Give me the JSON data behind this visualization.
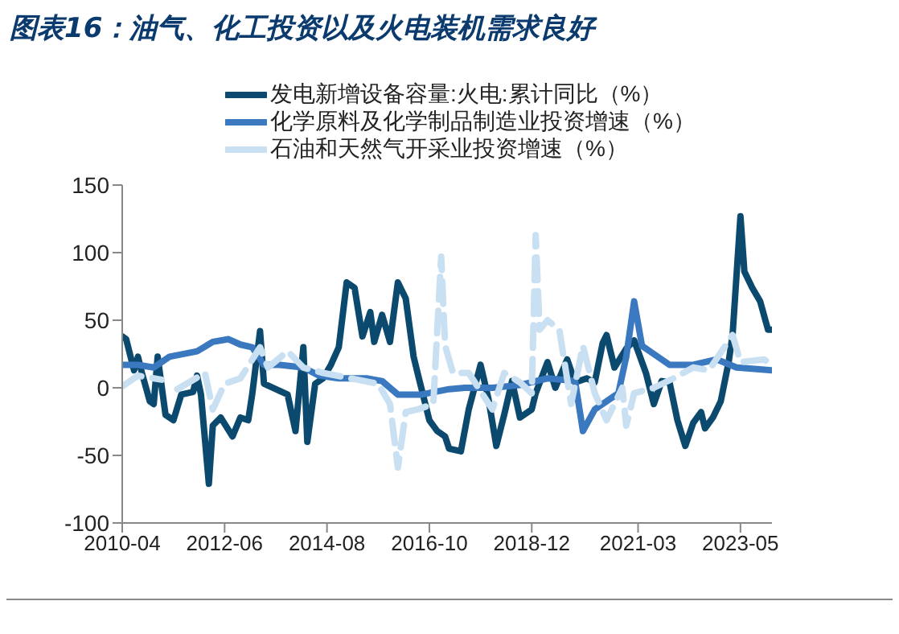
{
  "chart_data": {
    "type": "line",
    "title": "图表16：油气、化工投资以及火电装机需求良好",
    "xlim": [
      "2010-04",
      "2024-01"
    ],
    "xticks": [
      "2010-04",
      "2012-06",
      "2014-08",
      "2016-10",
      "2018-12",
      "2021-03",
      "2023-05"
    ],
    "ylim": [
      -100,
      150
    ],
    "yticks": [
      -100,
      -50,
      0,
      50,
      100,
      150
    ],
    "grid": false,
    "legend": "top",
    "marker": "none",
    "series": [
      {
        "name": "发电新增设备容量:火电:累计同比（%）",
        "color": "#0b4a6e",
        "line_style": "solid",
        "x": [
          "2010-04",
          "2010-05",
          "2010-07",
          "2010-08",
          "2010-09",
          "2010-11",
          "2010-12",
          "2011-01",
          "2011-03",
          "2011-05",
          "2011-07",
          "2011-10",
          "2011-11",
          "2011-12",
          "2012-02",
          "2012-03",
          "2012-05",
          "2012-08",
          "2012-10",
          "2012-12",
          "2013-01",
          "2013-03",
          "2013-04",
          "2013-07",
          "2013-10",
          "2013-12",
          "2014-02",
          "2014-03",
          "2014-05",
          "2014-07",
          "2014-09",
          "2014-11",
          "2015-01",
          "2015-03",
          "2015-05",
          "2015-07",
          "2015-08",
          "2015-10",
          "2015-12",
          "2016-02",
          "2016-04",
          "2016-06",
          "2016-07",
          "2016-10",
          "2016-12",
          "2017-02",
          "2017-03",
          "2017-06",
          "2017-08",
          "2017-11",
          "2018-01",
          "2018-03",
          "2018-05",
          "2018-07",
          "2018-09",
          "2018-12",
          "2019-01",
          "2019-04",
          "2019-06",
          "2019-09",
          "2019-11",
          "2020-02",
          "2020-04",
          "2020-06",
          "2020-07",
          "2020-09",
          "2020-12",
          "2021-02",
          "2021-05",
          "2021-07",
          "2021-09",
          "2021-11",
          "2022-01",
          "2022-03",
          "2022-05",
          "2022-07",
          "2022-08",
          "2022-10",
          "2022-12",
          "2023-02",
          "2023-03",
          "2023-05",
          "2023-06",
          "2023-08",
          "2023-10",
          "2023-12",
          "2024-01"
        ],
        "values": [
          38,
          36,
          13,
          23,
          11,
          -10,
          -12,
          23,
          -20,
          -24,
          -5,
          -3,
          9,
          -5,
          -71,
          -28,
          -22,
          -36,
          -22,
          -24,
          -5,
          42,
          3,
          -1,
          -5,
          -32,
          30,
          -40,
          3,
          7,
          17,
          30,
          78,
          74,
          38,
          56,
          34,
          54,
          34,
          78,
          66,
          23,
          11,
          -24,
          -32,
          -36,
          -45,
          -47,
          -16,
          17,
          -8,
          -43,
          -20,
          5,
          -22,
          -16,
          -4,
          19,
          0,
          21,
          4,
          7,
          4,
          33,
          39,
          15,
          29,
          35,
          11,
          -12,
          5,
          4,
          -24,
          -43,
          -26,
          -18,
          -30,
          -22,
          -10,
          19,
          39,
          127,
          86,
          74,
          64,
          43,
          43
        ]
      },
      {
        "name": "化学原料及化学制品制造业投资增速（%）",
        "color": "#3a78c0",
        "line_style": "solid",
        "x": [
          "2010-04",
          "2010-08",
          "2010-12",
          "2011-04",
          "2011-11",
          "2012-03",
          "2012-07",
          "2012-10",
          "2013-01",
          "2013-04",
          "2013-08",
          "2014-02",
          "2014-06",
          "2014-11",
          "2015-06",
          "2015-10",
          "2016-02",
          "2016-08",
          "2017-03",
          "2017-07",
          "2018-02",
          "2018-09",
          "2019-04",
          "2019-11",
          "2020-01",
          "2020-04",
          "2020-10",
          "2020-12",
          "2021-02",
          "2021-04",
          "2021-07",
          "2021-11",
          "2022-05",
          "2022-11",
          "2023-04",
          "2024-01"
        ],
        "values": [
          17,
          17,
          15,
          23,
          27,
          34,
          36,
          32,
          30,
          17,
          17,
          15,
          9,
          7,
          7,
          5,
          -5,
          -5,
          -1,
          0,
          0,
          2,
          7,
          5,
          -32,
          -16,
          -4,
          23,
          64,
          31,
          25,
          17,
          17,
          21,
          15,
          13
        ]
      },
      {
        "name": "石油和天然气开采业投资增速（%）",
        "color": "#c9dff2",
        "line_style": "dashed",
        "x": [
          "2010-04",
          "2010-08",
          "2011-02",
          "2011-04",
          "2011-06",
          "2012-01",
          "2012-03",
          "2012-06",
          "2012-10",
          "2013-03",
          "2013-05",
          "2013-10",
          "2014-02",
          "2014-07",
          "2015-02",
          "2015-09",
          "2015-12",
          "2016-02",
          "2016-04",
          "2016-07",
          "2016-11",
          "2017-01",
          "2017-02",
          "2017-04",
          "2017-08",
          "2018-02",
          "2018-05",
          "2018-09",
          "2018-12",
          "2019-01",
          "2019-02",
          "2019-04",
          "2019-07",
          "2019-10",
          "2020-01",
          "2020-04",
          "2020-07",
          "2020-11",
          "2020-12",
          "2021-02",
          "2021-07",
          "2021-12",
          "2022-05",
          "2022-09",
          "2023-03",
          "2023-05",
          "2023-11",
          "2024-01"
        ],
        "values": [
          1,
          9,
          6,
          null,
          -1,
          11,
          -16,
          3,
          7,
          30,
          15,
          27,
          15,
          11,
          7,
          3,
          -12,
          -59,
          -18,
          -16,
          -12,
          97,
          31,
          11,
          11,
          -16,
          11,
          4,
          -4,
          113,
          43,
          50,
          43,
          -12,
          31,
          -4,
          -24,
          0,
          -28,
          -4,
          0,
          7,
          15,
          13,
          39,
          19,
          21,
          17
        ]
      }
    ]
  }
}
